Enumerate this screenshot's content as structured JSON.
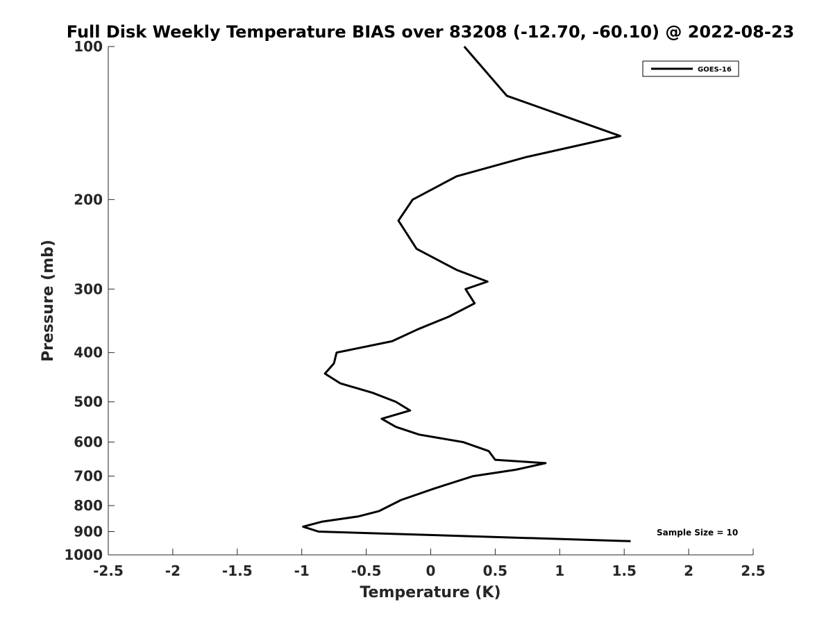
{
  "chart_data": {
    "type": "line",
    "title": "Full Disk Weekly Temperature BIAS over 83208 (-12.70, -60.10) @ 2022-08-23",
    "xlabel": "Temperature (K)",
    "ylabel": "Pressure (mb)",
    "xlim": [
      -2.5,
      2.5
    ],
    "ylim": [
      100,
      1000
    ],
    "y_scale": "log",
    "y_reversed": true,
    "x_ticks": [
      -2.5,
      -2,
      -1.5,
      -1,
      -0.5,
      0,
      0.5,
      1,
      1.5,
      2,
      2.5
    ],
    "x_tick_labels": [
      "-2.5",
      "-2",
      "-1.5",
      "-1",
      "-0.5",
      "0",
      "0.5",
      "1",
      "1.5",
      "2",
      "2.5"
    ],
    "y_ticks": [
      100,
      200,
      300,
      400,
      500,
      600,
      700,
      800,
      900,
      1000
    ],
    "y_tick_labels": [
      "100",
      "200",
      "300",
      "400",
      "500",
      "600",
      "700",
      "800",
      "900",
      "1000"
    ],
    "grid": false,
    "legend_position": "top-right",
    "series": [
      {
        "name": "GOES-16",
        "color": "#000000",
        "points": [
          {
            "x": 0.26,
            "p": 100
          },
          {
            "x": 0.59,
            "p": 125
          },
          {
            "x": 1.47,
            "p": 150
          },
          {
            "x": 0.74,
            "p": 165
          },
          {
            "x": 0.2,
            "p": 180
          },
          {
            "x": -0.14,
            "p": 200
          },
          {
            "x": -0.25,
            "p": 220
          },
          {
            "x": -0.11,
            "p": 250
          },
          {
            "x": 0.2,
            "p": 275
          },
          {
            "x": 0.44,
            "p": 290
          },
          {
            "x": 0.27,
            "p": 300
          },
          {
            "x": 0.34,
            "p": 320
          },
          {
            "x": 0.14,
            "p": 340
          },
          {
            "x": -0.1,
            "p": 360
          },
          {
            "x": -0.3,
            "p": 380
          },
          {
            "x": -0.73,
            "p": 400
          },
          {
            "x": -0.75,
            "p": 420
          },
          {
            "x": -0.82,
            "p": 440
          },
          {
            "x": -0.7,
            "p": 460
          },
          {
            "x": -0.45,
            "p": 480
          },
          {
            "x": -0.27,
            "p": 500
          },
          {
            "x": -0.16,
            "p": 520
          },
          {
            "x": -0.38,
            "p": 540
          },
          {
            "x": -0.27,
            "p": 560
          },
          {
            "x": -0.09,
            "p": 580
          },
          {
            "x": 0.25,
            "p": 600
          },
          {
            "x": 0.45,
            "p": 625
          },
          {
            "x": 0.5,
            "p": 650
          },
          {
            "x": 0.89,
            "p": 660
          },
          {
            "x": 0.66,
            "p": 680
          },
          {
            "x": 0.33,
            "p": 700
          },
          {
            "x": 0.03,
            "p": 740
          },
          {
            "x": -0.23,
            "p": 780
          },
          {
            "x": -0.4,
            "p": 820
          },
          {
            "x": -0.56,
            "p": 840
          },
          {
            "x": -0.84,
            "p": 860
          },
          {
            "x": -0.99,
            "p": 880
          },
          {
            "x": -0.87,
            "p": 900
          },
          {
            "x": 1.55,
            "p": 940
          }
        ]
      }
    ],
    "annotations": [
      {
        "text": "Sample Size = 10"
      }
    ]
  }
}
